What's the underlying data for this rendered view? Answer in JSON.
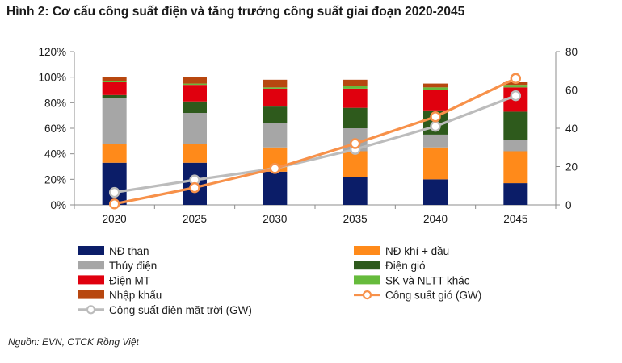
{
  "chart_data": {
    "type": "bar",
    "stacked": true,
    "title": "Hình 2: Cơ cấu công suất điện và tăng trưởng công suất giai đoạn 2020-2045",
    "categories": [
      "2020",
      "2025",
      "2030",
      "2035",
      "2040",
      "2045"
    ],
    "y_left": {
      "ticks": [
        "0%",
        "20%",
        "40%",
        "60%",
        "80%",
        "100%",
        "120%"
      ],
      "range": [
        0,
        120
      ]
    },
    "y_right": {
      "ticks": [
        "0",
        "20",
        "40",
        "60",
        "80"
      ],
      "range": [
        0,
        80
      ]
    },
    "grid": false,
    "legend_position": "bottom",
    "series": [
      {
        "name": "NĐ than",
        "color": "#0b1d68",
        "values": [
          33,
          33,
          26,
          22,
          20,
          17
        ]
      },
      {
        "name": "NĐ khí + dầu",
        "color": "#ff8a1a",
        "values": [
          15,
          15,
          19,
          20,
          25,
          25
        ]
      },
      {
        "name": "Thủy điện",
        "color": "#a6a6a6",
        "values": [
          36,
          24,
          19,
          18,
          10,
          9
        ]
      },
      {
        "name": "Điện gió",
        "color": "#2e5a1c",
        "values": [
          2,
          9,
          13,
          16,
          19,
          22
        ]
      },
      {
        "name": "Điện MT",
        "color": "#e0000e",
        "values": [
          10,
          13,
          14,
          15,
          16,
          19
        ]
      },
      {
        "name": "SK và NLTT khác",
        "color": "#66bb3c",
        "values": [
          1,
          1,
          1,
          2,
          2,
          2
        ]
      },
      {
        "name": "Nhập khẩu",
        "color": "#b8470f",
        "values": [
          3,
          5,
          6,
          5,
          3,
          2
        ]
      }
    ],
    "lines": [
      {
        "name": "Công suất điện mặt trời (GW)",
        "color": "#bcbcbc",
        "axis": "right",
        "values": [
          6.5,
          13,
          19,
          29,
          41,
          57
        ]
      },
      {
        "name": "Công suất gió (GW)",
        "color": "#f7914a",
        "axis": "right",
        "values": [
          0.5,
          9,
          19,
          32,
          46,
          66
        ]
      }
    ]
  },
  "source": "Nguồn: EVN, CTCK Rồng Việt"
}
